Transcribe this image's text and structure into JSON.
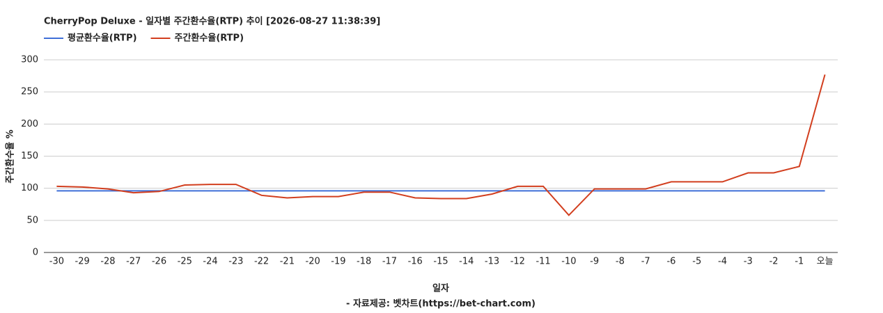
{
  "chart_data": {
    "type": "line",
    "title": "CherryPop Deluxe - 일자별 주간환수율(RTP) 추이 [2026-08-27 11:38:39]",
    "x_label": "일자",
    "y_label": "주간환수율 %",
    "source": "- 자료제공: 벳차트(https://bet-chart.com)",
    "categories": [
      "-30",
      "-29",
      "-28",
      "-27",
      "-26",
      "-25",
      "-24",
      "-23",
      "-22",
      "-21",
      "-20",
      "-19",
      "-18",
      "-17",
      "-16",
      "-15",
      "-14",
      "-13",
      "-12",
      "-11",
      "-10",
      "-9",
      "-8",
      "-7",
      "-6",
      "-5",
      "-4",
      "-3",
      "-2",
      "-1",
      "오늘"
    ],
    "series": [
      {
        "name": "평균환수율(RTP)",
        "color": "#3f6fd8",
        "values": [
          96,
          96,
          96,
          96,
          96,
          96,
          96,
          96,
          96,
          96,
          96,
          96,
          96,
          96,
          96,
          96,
          96,
          96,
          96,
          96,
          96,
          96,
          96,
          96,
          96,
          96,
          96,
          96,
          96,
          96,
          96
        ]
      },
      {
        "name": "주간환수율(RTP)",
        "color": "#d23e1e",
        "values": [
          103,
          102,
          99,
          93,
          95,
          105,
          106,
          106,
          89,
          85,
          87,
          87,
          94,
          94,
          85,
          84,
          84,
          91,
          103,
          103,
          58,
          99,
          99,
          99,
          110,
          110,
          110,
          124,
          124,
          134,
          277
        ]
      }
    ],
    "ylim": [
      0,
      300
    ],
    "yticks": [
      0,
      50,
      100,
      150,
      200,
      250,
      300
    ],
    "grid": true,
    "legend": "top-left"
  }
}
